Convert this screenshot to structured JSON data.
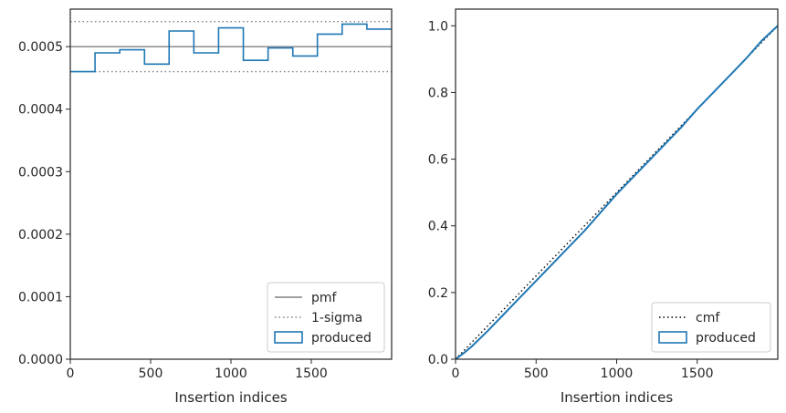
{
  "chart_data": [
    {
      "type": "line",
      "title": "",
      "xlabel": "Insertion indices",
      "ylabel": "",
      "xlim": [
        0,
        2000
      ],
      "ylim": [
        0,
        0.00056
      ],
      "grid": false,
      "legend_position": "bottom-right",
      "x_ticks": [
        "0",
        "500",
        "1000",
        "1500"
      ],
      "y_ticks": [
        "0.0000",
        "0.0001",
        "0.0002",
        "0.0003",
        "0.0004",
        "0.0005"
      ],
      "series": [
        {
          "name": "pmf",
          "kind": "hline",
          "values": [
            0.0005
          ],
          "color": "#808080",
          "style": "solid"
        },
        {
          "name": "1-sigma",
          "kind": "hlines",
          "values": [
            0.00046,
            0.00054
          ],
          "color": "#808080",
          "style": "dotted"
        },
        {
          "name": "produced",
          "kind": "step-histogram",
          "color": "#1f77b4",
          "bin_edges": [
            0,
            154,
            308,
            462,
            615,
            769,
            923,
            1077,
            1231,
            1385,
            1538,
            1692,
            1846,
            2000
          ],
          "values": [
            0.00046,
            0.00049,
            0.000495,
            0.000472,
            0.000525,
            0.00049,
            0.00053,
            0.000478,
            0.000498,
            0.000485,
            0.00052,
            0.000536,
            0.000528
          ]
        }
      ]
    },
    {
      "type": "line",
      "title": "",
      "xlabel": "Insertion indices",
      "ylabel": "",
      "xlim": [
        0,
        2000
      ],
      "ylim": [
        0,
        1.05
      ],
      "grid": false,
      "legend_position": "bottom-right",
      "x_ticks": [
        "0",
        "500",
        "1000",
        "1500"
      ],
      "y_ticks": [
        "0.0",
        "0.2",
        "0.4",
        "0.6",
        "0.8",
        "1.0"
      ],
      "series": [
        {
          "name": "cmf",
          "kind": "line",
          "x": [
            0,
            2000
          ],
          "values": [
            0,
            1.0
          ],
          "color": "#000000",
          "style": "dotted"
        },
        {
          "name": "produced",
          "kind": "cumulative-step",
          "color": "#1f77b4",
          "x": [
            0,
            50,
            100,
            200,
            300,
            400,
            500,
            600,
            700,
            800,
            900,
            1000,
            1100,
            1200,
            1300,
            1400,
            1500,
            1600,
            1700,
            1800,
            1900,
            2000
          ],
          "values": [
            0,
            0.018,
            0.038,
            0.085,
            0.135,
            0.185,
            0.235,
            0.285,
            0.335,
            0.385,
            0.44,
            0.495,
            0.545,
            0.595,
            0.645,
            0.695,
            0.75,
            0.8,
            0.85,
            0.9,
            0.955,
            1.0
          ]
        }
      ]
    }
  ]
}
